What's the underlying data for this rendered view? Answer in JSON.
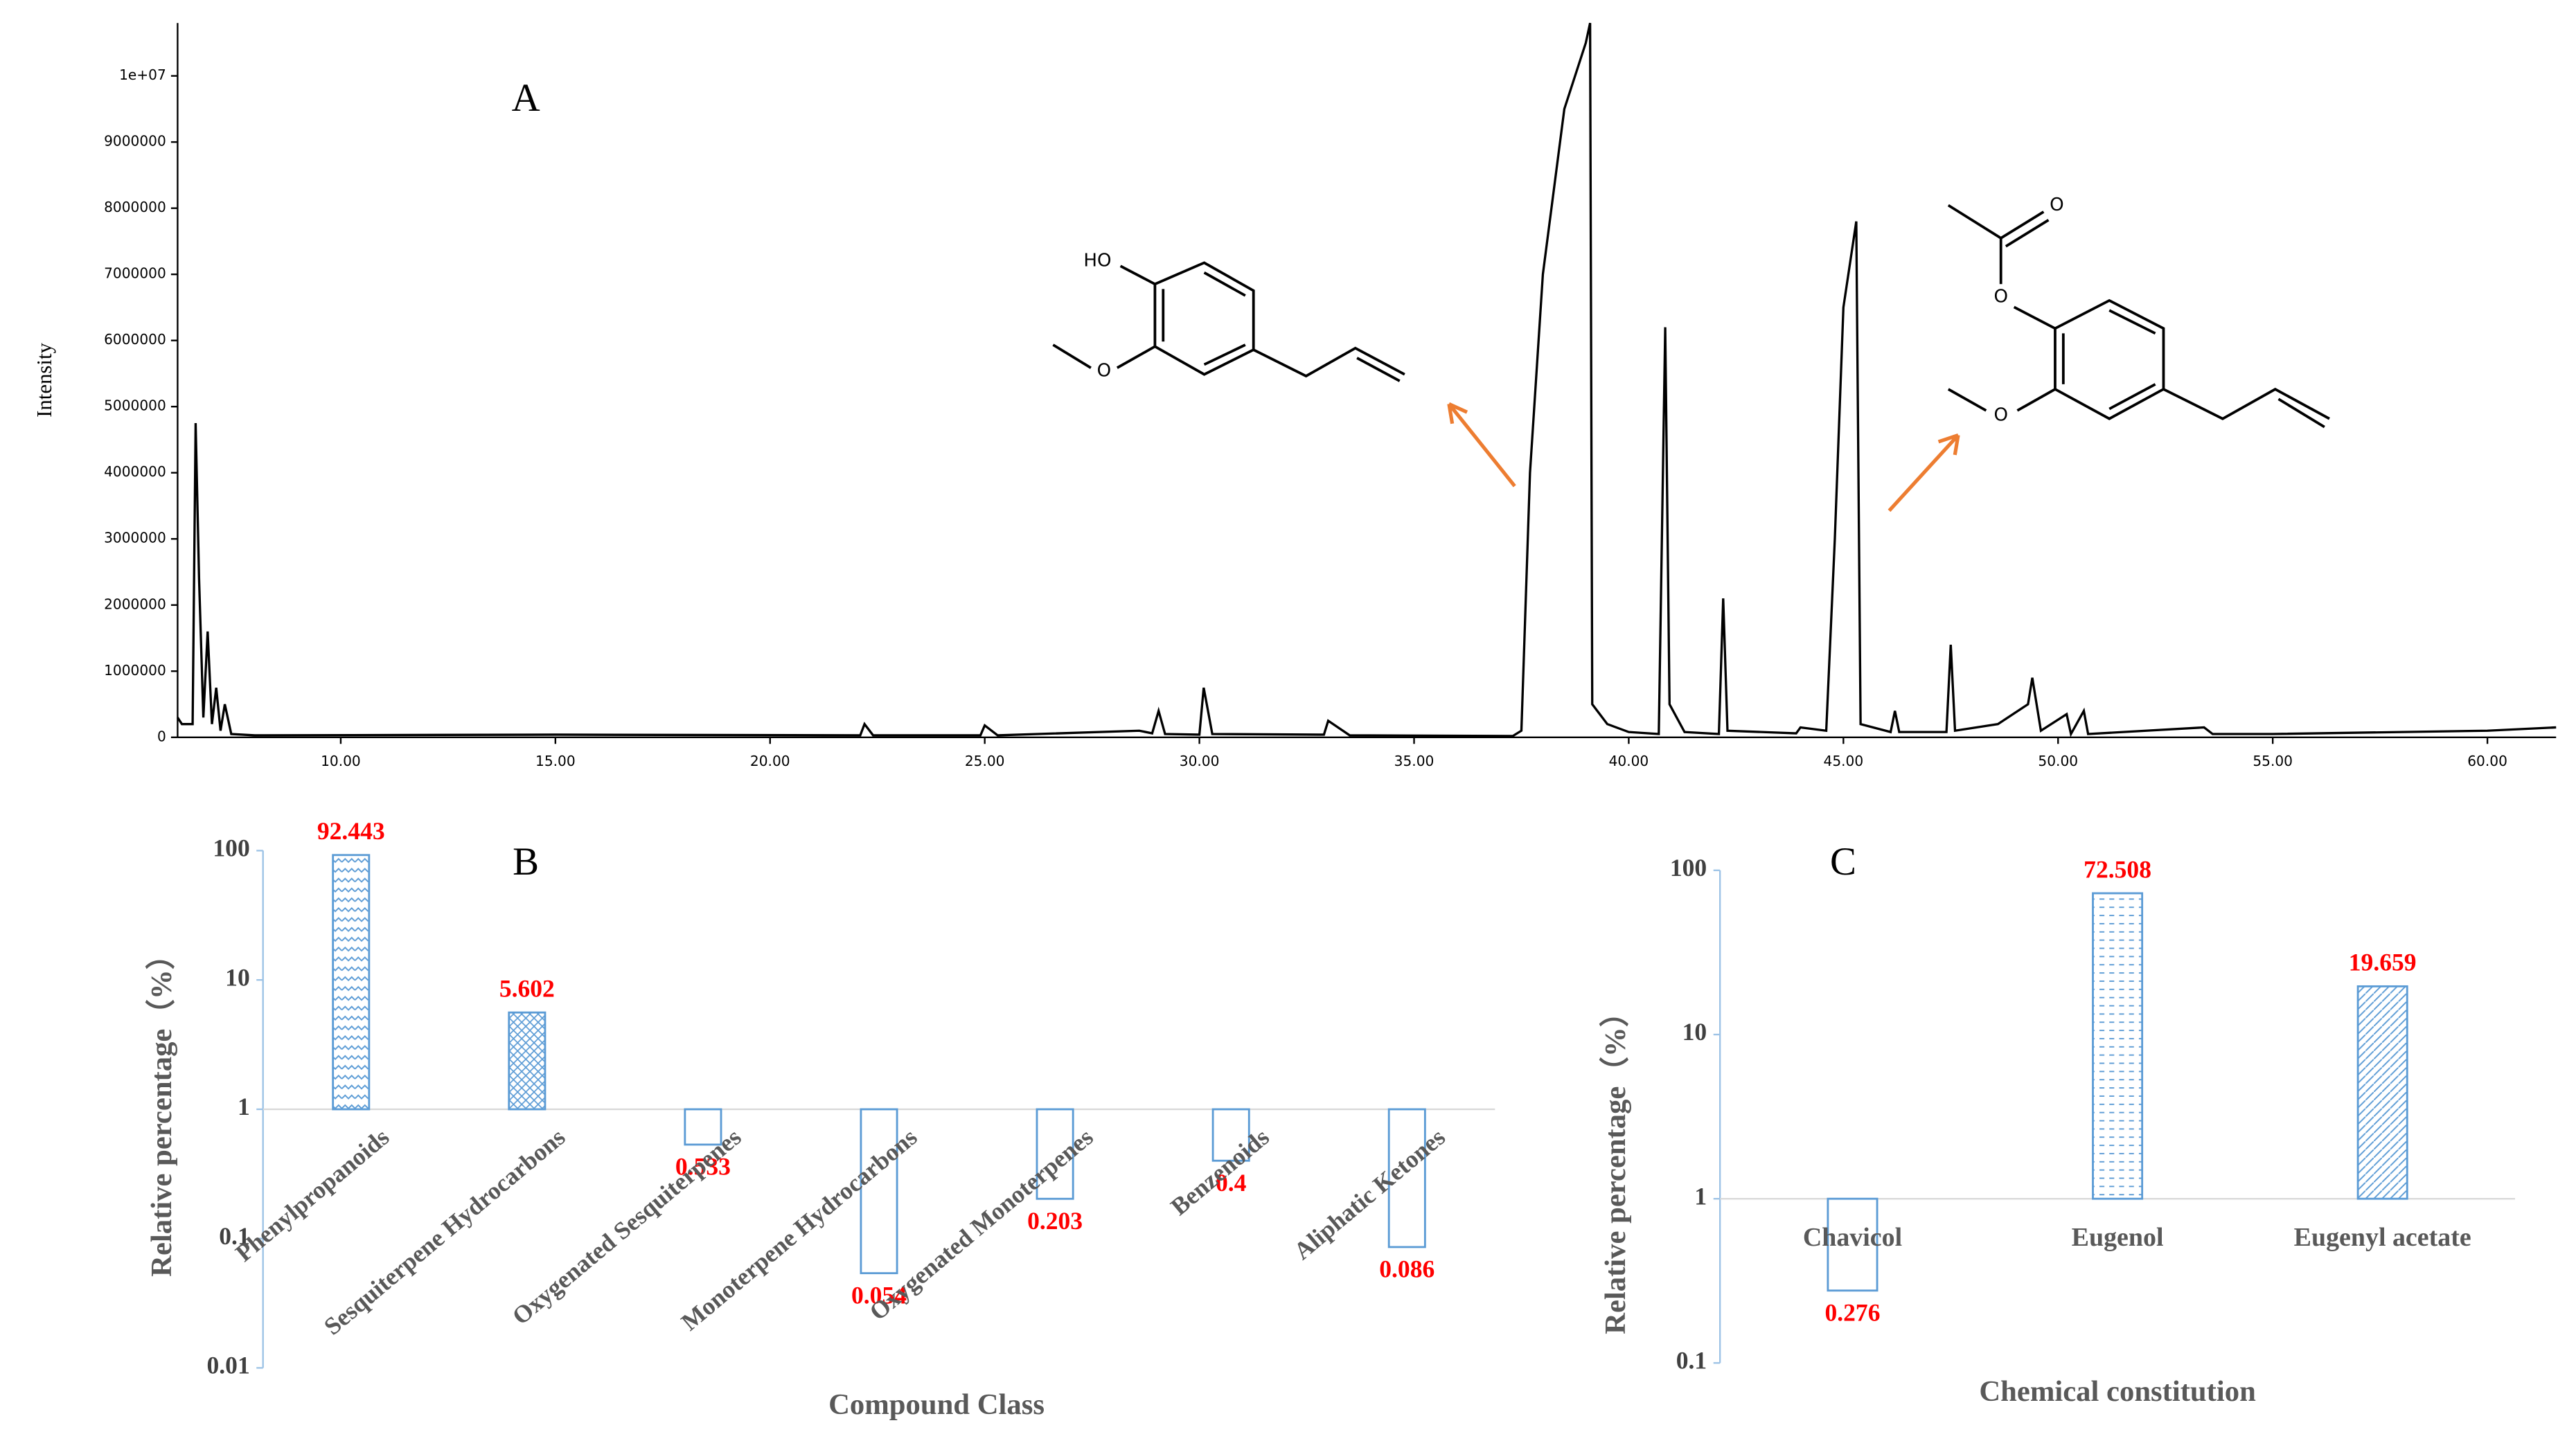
{
  "chart_data": [
    {
      "type": "line",
      "label": "A",
      "ylabel": "Intensity",
      "color": "#000000",
      "annotations": [
        "HO",
        "O",
        "O",
        "O",
        "O"
      ],
      "x": [
        6.2,
        6.3,
        6.55,
        6.62,
        6.7,
        6.8,
        6.9,
        7.0,
        7.1,
        7.2,
        7.3,
        7.45,
        8.0,
        15.0,
        22.1,
        22.2,
        22.4,
        24.9,
        25.0,
        25.3,
        28.6,
        28.9,
        29.05,
        29.2,
        30.0,
        30.1,
        30.3,
        32.9,
        33.0,
        33.5,
        37.3,
        37.5,
        37.7,
        38.0,
        38.5,
        39.0,
        39.1,
        39.15,
        39.5,
        40.0,
        40.7,
        40.85,
        40.95,
        41.3,
        42.1,
        42.2,
        42.3,
        43.9,
        44.0,
        44.6,
        44.8,
        45.0,
        45.3,
        45.4,
        46.1,
        46.2,
        46.3,
        47.4,
        47.5,
        47.6,
        48.6,
        49.3,
        49.4,
        49.6,
        50.2,
        50.3,
        50.6,
        50.7,
        53.4,
        53.6,
        55.0,
        60.0,
        61.6
      ],
      "values": [
        300000,
        200000,
        200000,
        4750000,
        2400000,
        300000,
        1600000,
        200000,
        750000,
        100000,
        500000,
        50000,
        30000,
        40000,
        30000,
        200000,
        30000,
        30000,
        180000,
        30000,
        100000,
        60000,
        400000,
        50000,
        40000,
        750000,
        50000,
        40000,
        250000,
        30000,
        20000,
        100000,
        4000000,
        7000000,
        9500000,
        10500000,
        10800000,
        500000,
        200000,
        80000,
        50000,
        6200000,
        500000,
        80000,
        50000,
        2100000,
        100000,
        60000,
        150000,
        100000,
        3000000,
        6500000,
        7800000,
        200000,
        80000,
        400000,
        80000,
        80000,
        1400000,
        100000,
        200000,
        500000,
        900000,
        100000,
        350000,
        50000,
        400000,
        50000,
        150000,
        50000,
        50000,
        100000,
        150000
      ],
      "xlim": [
        6.2,
        61.6
      ],
      "xticks": [
        {
          "value": 10,
          "label": "10.00"
        },
        {
          "value": 15,
          "label": "15.00"
        },
        {
          "value": 20,
          "label": "20.00"
        },
        {
          "value": 25,
          "label": "25.00"
        },
        {
          "value": 30,
          "label": "30.00"
        },
        {
          "value": 35,
          "label": "35.00"
        },
        {
          "value": 40,
          "label": "40.00"
        },
        {
          "value": 45,
          "label": "45.00"
        },
        {
          "value": 50,
          "label": "50.00"
        },
        {
          "value": 55,
          "label": "55.00"
        },
        {
          "value": 60,
          "label": "60.00"
        }
      ],
      "ylim": [
        0,
        10800000
      ],
      "yticks": [
        0,
        1000000,
        2000000,
        3000000,
        4000000,
        5000000,
        6000000,
        7000000,
        8000000,
        9000000,
        {
          "value": 10000000,
          "label": "1e+07"
        }
      ]
    },
    {
      "type": "bar",
      "label": "B",
      "xlabel": "Compound Class",
      "ylabel": "Relative percentage（%）",
      "categories": [
        "Phenylpropanoids",
        "Sesquiterpene Hydrocarbons",
        "Oxygenated Sesquiterpenes",
        "Monoterpene Hydrocarbons",
        "Oxygenated Monoterpenes",
        "Benzenoids",
        "Aliphatic Ketones"
      ],
      "values": [
        92.443,
        5.602,
        0.533,
        0.054,
        0.203,
        0.4,
        0.086
      ],
      "ylim": [
        0.01,
        100
      ],
      "yticks": [
        0.01,
        0.1,
        1,
        10,
        100
      ],
      "log_scale": true,
      "color": "#5b9bd5",
      "label_color": "#ff0000"
    },
    {
      "type": "bar",
      "label": "C",
      "xlabel": "Chemical constitution",
      "ylabel": "Relative percentage（%）",
      "categories": [
        "Chavicol",
        "Eugenol",
        "Eugenyl acetate"
      ],
      "values": [
        0.276,
        72.508,
        19.659
      ],
      "ylim": [
        0.1,
        100
      ],
      "yticks": [
        0.1,
        1,
        10,
        100
      ],
      "log_scale": true,
      "color": "#5b9bd5",
      "label_color": "#ff0000"
    }
  ]
}
